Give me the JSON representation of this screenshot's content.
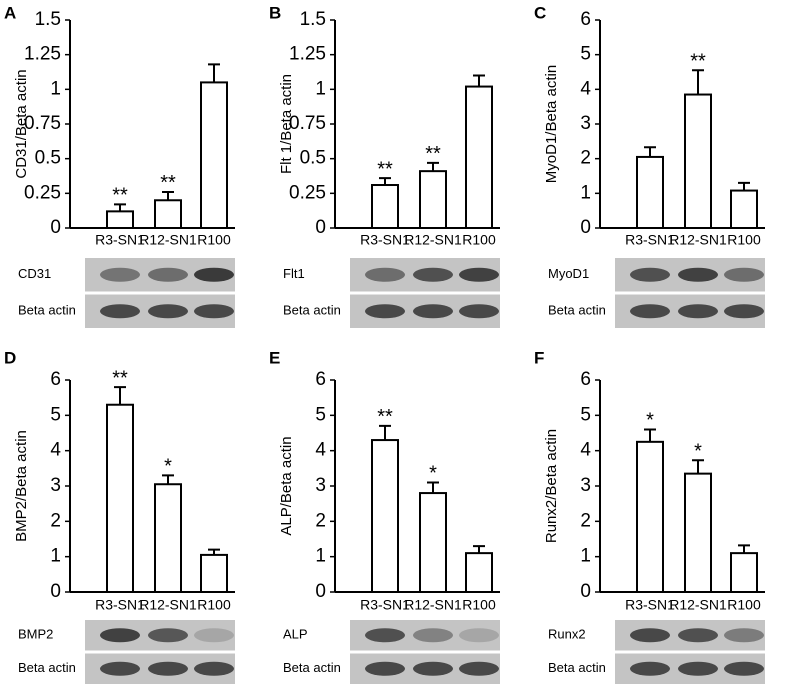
{
  "chart_data": [
    {
      "type": "bar",
      "panel": "A",
      "ylabel": "CD31/Beta actin",
      "categories": [
        "R3-SN1",
        "R12-SN1",
        "R100"
      ],
      "values": [
        0.12,
        0.2,
        1.05
      ],
      "errors": [
        0.05,
        0.06,
        0.13
      ],
      "annotations": [
        "**",
        "**",
        null
      ],
      "ylim": [
        0,
        1.5
      ],
      "yticks": [
        0,
        0.25,
        0.5,
        0.75,
        1,
        1.25,
        1.5
      ],
      "blot_labels": [
        "CD31",
        "Beta actin"
      ],
      "color": "#ffffff"
    },
    {
      "type": "bar",
      "panel": "B",
      "ylabel": "Flt 1/Beta actin",
      "categories": [
        "R3-SN1",
        "R12-SN1",
        "R100"
      ],
      "values": [
        0.31,
        0.41,
        1.02
      ],
      "errors": [
        0.05,
        0.06,
        0.08
      ],
      "annotations": [
        "**",
        "**",
        null
      ],
      "ylim": [
        0,
        1.5
      ],
      "yticks": [
        0,
        0.25,
        0.5,
        0.75,
        1,
        1.25,
        1.5
      ],
      "blot_labels": [
        "Flt1",
        "Beta actin"
      ],
      "color": "#ffffff"
    },
    {
      "type": "bar",
      "panel": "C",
      "ylabel": "MyoD1/Beta actin",
      "categories": [
        "R3-SN1",
        "R12-SN1",
        "R100"
      ],
      "values": [
        2.05,
        3.85,
        1.08
      ],
      "errors": [
        0.28,
        0.7,
        0.22
      ],
      "annotations": [
        null,
        "**",
        null
      ],
      "ylim": [
        0,
        6
      ],
      "yticks": [
        0,
        1,
        2,
        3,
        4,
        5,
        6
      ],
      "blot_labels": [
        "MyoD1",
        "Beta actin"
      ],
      "color": "#ffffff"
    },
    {
      "type": "bar",
      "panel": "D",
      "ylabel": "BMP2/Beta actin",
      "categories": [
        "R3-SN1",
        "R12-SN1",
        "R100"
      ],
      "values": [
        5.3,
        3.05,
        1.05
      ],
      "errors": [
        0.5,
        0.25,
        0.15
      ],
      "annotations": [
        "**",
        "*",
        null
      ],
      "ylim": [
        0,
        6
      ],
      "yticks": [
        0,
        1,
        2,
        3,
        4,
        5,
        6
      ],
      "blot_labels": [
        "BMP2",
        "Beta actin"
      ],
      "color": "#ffffff"
    },
    {
      "type": "bar",
      "panel": "E",
      "ylabel": "ALP/Beta actin",
      "categories": [
        "R3-SN1",
        "R12-SN1",
        "R100"
      ],
      "values": [
        4.3,
        2.8,
        1.1
      ],
      "errors": [
        0.4,
        0.3,
        0.2
      ],
      "annotations": [
        "**",
        "*",
        null
      ],
      "ylim": [
        0,
        6
      ],
      "yticks": [
        0,
        1,
        2,
        3,
        4,
        5,
        6
      ],
      "blot_labels": [
        "ALP",
        "Beta actin"
      ],
      "color": "#ffffff"
    },
    {
      "type": "bar",
      "panel": "F",
      "ylabel": "Runx2/Beta actin",
      "categories": [
        "R3-SN1",
        "R12-SN1",
        "R100"
      ],
      "values": [
        4.25,
        3.35,
        1.1
      ],
      "errors": [
        0.35,
        0.38,
        0.22
      ],
      "annotations": [
        "*",
        "*",
        null
      ],
      "ylim": [
        0,
        6
      ],
      "yticks": [
        0,
        1,
        2,
        3,
        4,
        5,
        6
      ],
      "blot_labels": [
        "Runx2",
        "Beta actin"
      ],
      "color": "#ffffff"
    }
  ]
}
